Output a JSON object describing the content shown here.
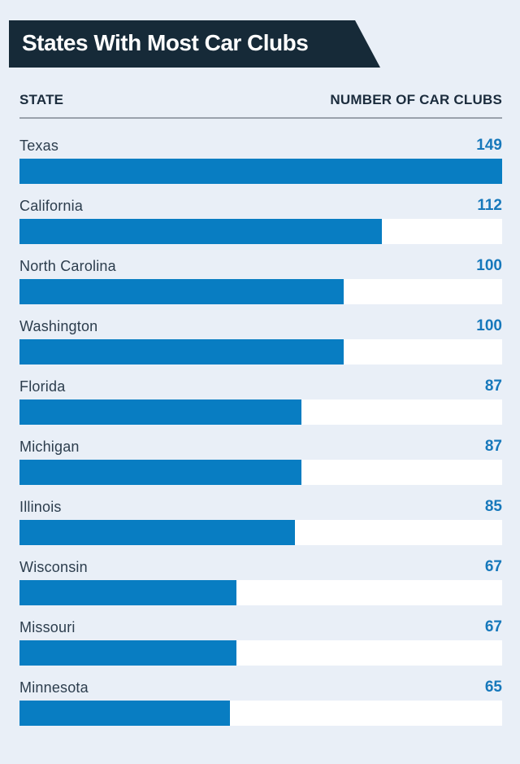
{
  "title": "States With Most Car Clubs",
  "columns": {
    "state": "STATE",
    "value": "NUMBER OF CAR CLUBS"
  },
  "rows": [
    {
      "state": "Texas",
      "value": 149
    },
    {
      "state": "California",
      "value": 112
    },
    {
      "state": "North Carolina",
      "value": 100
    },
    {
      "state": "Washington",
      "value": 100
    },
    {
      "state": "Florida",
      "value": 87
    },
    {
      "state": "Michigan",
      "value": 87
    },
    {
      "state": "Illinois",
      "value": 85
    },
    {
      "state": "Wisconsin",
      "value": 67
    },
    {
      "state": "Missouri",
      "value": 67
    },
    {
      "state": "Minnesota",
      "value": 65
    }
  ],
  "chart_data": {
    "type": "bar",
    "orientation": "horizontal",
    "title": "States With Most Car Clubs",
    "xlabel": "NUMBER OF CAR CLUBS",
    "ylabel": "STATE",
    "categories": [
      "Texas",
      "California",
      "North Carolina",
      "Washington",
      "Florida",
      "Michigan",
      "Illinois",
      "Wisconsin",
      "Missouri",
      "Minnesota"
    ],
    "values": [
      149,
      112,
      100,
      100,
      87,
      87,
      85,
      67,
      67,
      65
    ],
    "xlim": [
      0,
      149
    ],
    "grid": false,
    "legend": false,
    "data_labels": true
  },
  "colors": {
    "background": "#e9eff7",
    "banner": "#162a38",
    "title_text": "#ffffff",
    "header_text": "#1b2c3d",
    "divider": "#9aa2ac",
    "label_text": "#2c3d4d",
    "value_text": "#1678bb",
    "bar": "#087dc2",
    "bar_track": "#ffffff"
  }
}
